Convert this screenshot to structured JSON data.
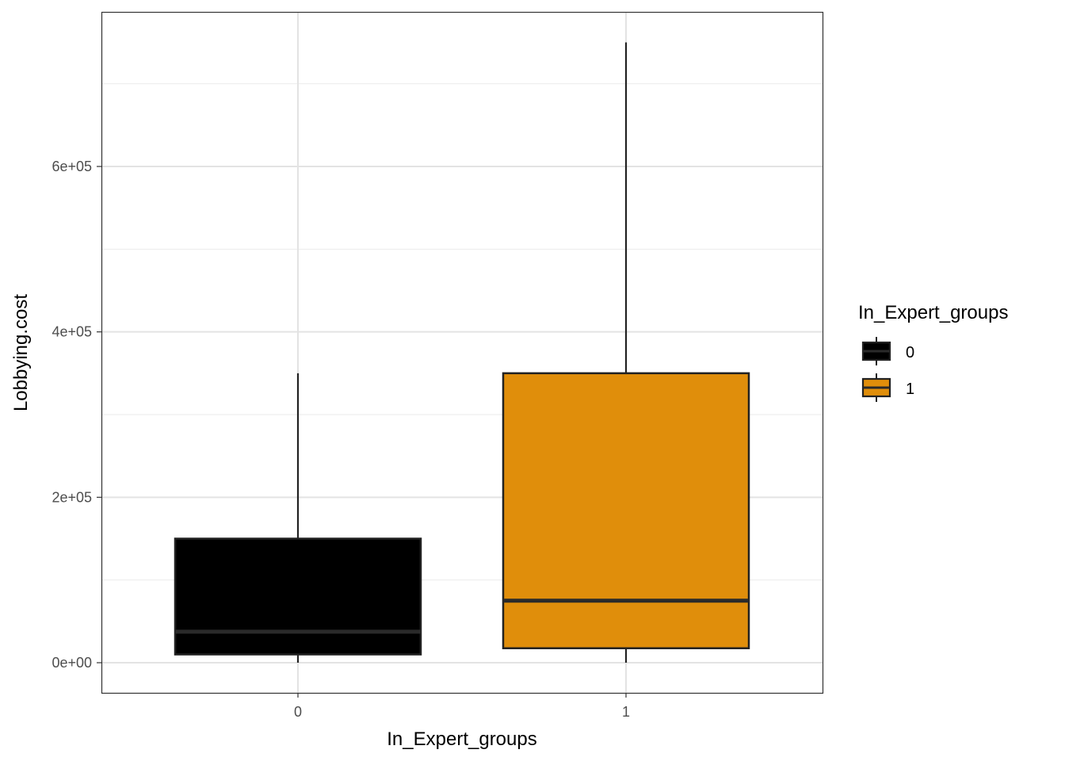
{
  "chart_data": {
    "type": "boxplot",
    "title": "",
    "xlabel": "In_Expert_groups",
    "ylabel": "Lobbying.cost",
    "categories": [
      "0",
      "1"
    ],
    "ylim": [
      -37500,
      785000
    ],
    "yticks": [
      0,
      200000,
      400000,
      600000
    ],
    "ytick_labels": [
      "0e+00",
      "2e+05",
      "4e+05",
      "6e+05"
    ],
    "grid": true,
    "boxes": [
      {
        "category": "0",
        "min": 0,
        "q1": 10000,
        "median": 37500,
        "q3": 150000,
        "max": 350000,
        "fill": "#000000"
      },
      {
        "category": "1",
        "min": 0,
        "q1": 17500,
        "median": 75000,
        "q3": 350000,
        "max": 750000,
        "fill": "#E08E0B"
      }
    ],
    "legend": {
      "title": "In_Expert_groups",
      "placement": "right",
      "entries": [
        {
          "label": "0",
          "color": "#000000"
        },
        {
          "label": "1",
          "color": "#E08E0B"
        }
      ]
    }
  }
}
